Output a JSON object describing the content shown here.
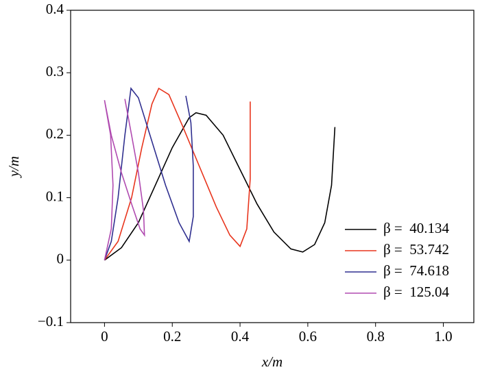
{
  "chart_data": {
    "type": "line",
    "x_label": "x/m",
    "y_label": "y/m",
    "xlim": [
      -0.1,
      1.09
    ],
    "ylim": [
      -0.1,
      0.4
    ],
    "xticks": [
      0,
      0.2,
      0.4,
      0.6,
      0.8,
      {
        "value": 1.0,
        "label": "1.0"
      }
    ],
    "yticks": [
      {
        "value": -0.1,
        "label": "−0.1"
      },
      0,
      0.1,
      0.2,
      0.3,
      0.4
    ],
    "legend_position": "lower right",
    "series": [
      {
        "name": "β =  40.134",
        "color": "#000000",
        "x": [
          0,
          0.05,
          0.1,
          0.15,
          0.2,
          0.25,
          0.27,
          0.3,
          0.35,
          0.4,
          0.45,
          0.5,
          0.55,
          0.585,
          0.62,
          0.65,
          0.67,
          0.68
        ],
        "values": [
          0,
          0.02,
          0.06,
          0.12,
          0.18,
          0.228,
          0.236,
          0.232,
          0.2,
          0.145,
          0.09,
          0.045,
          0.018,
          0.013,
          0.025,
          0.06,
          0.12,
          0.213
        ]
      },
      {
        "name": "β =  53.742",
        "color": "#e8341c",
        "x": [
          0,
          0.04,
          0.08,
          0.11,
          0.14,
          0.16,
          0.19,
          0.23,
          0.28,
          0.33,
          0.37,
          0.4,
          0.42,
          0.43,
          0.43
        ],
        "values": [
          0,
          0.03,
          0.1,
          0.18,
          0.25,
          0.275,
          0.265,
          0.215,
          0.15,
          0.085,
          0.04,
          0.022,
          0.05,
          0.13,
          0.254
        ]
      },
      {
        "name": "β =  74.618",
        "color": "#2f2f8f",
        "x": [
          0,
          0.02,
          0.04,
          0.06,
          0.078,
          0.1,
          0.14,
          0.18,
          0.22,
          0.25,
          0.262,
          0.262,
          0.255,
          0.24
        ],
        "values": [
          0,
          0.03,
          0.1,
          0.2,
          0.275,
          0.26,
          0.19,
          0.12,
          0.06,
          0.03,
          0.07,
          0.15,
          0.22,
          0.263
        ]
      },
      {
        "name": "β =  125.04",
        "color": "#b04ab0",
        "x": [
          0,
          0.02,
          0.025,
          0.018,
          0,
          0.02,
          0.05,
          0.08,
          0.105,
          0.118,
          0.115,
          0.1,
          0.08,
          0.06
        ],
        "values": [
          0,
          0.05,
          0.12,
          0.2,
          0.256,
          0.2,
          0.14,
          0.09,
          0.05,
          0.04,
          0.08,
          0.14,
          0.2,
          0.258
        ]
      }
    ]
  }
}
